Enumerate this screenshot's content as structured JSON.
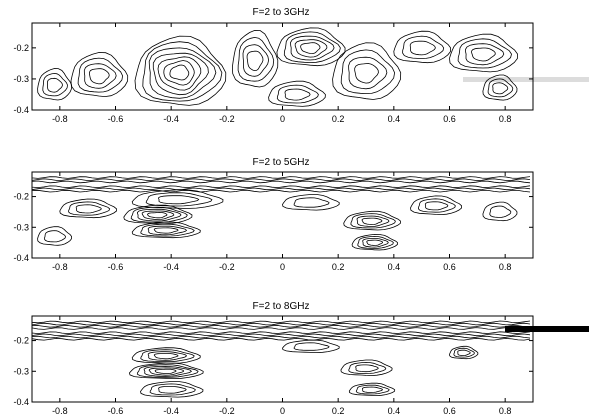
{
  "chart_data": [
    {
      "type": "contour",
      "title": "F=2 to 3GHz",
      "xlabel": "",
      "ylabel": "",
      "xlim": [
        -0.9,
        0.9
      ],
      "ylim": [
        -0.4,
        -0.12
      ],
      "xticks": [
        -0.8,
        -0.6,
        -0.4,
        -0.2,
        0,
        0.2,
        0.4,
        0.6,
        0.8
      ],
      "xtick_labels": [
        "-0.8",
        "-0.6",
        "-0.4",
        "-0.2",
        "0",
        "0.2",
        "0.4",
        "0.6",
        "0.8"
      ],
      "yticks": [
        -0.2,
        -0.3,
        -0.4
      ],
      "ytick_labels": [
        "-0.2",
        "-0.3",
        "-0.4"
      ],
      "grid": false,
      "line_color": "#000000",
      "features": [
        {
          "x": -0.66,
          "y": -0.29,
          "rx": 0.1,
          "ry": 0.07,
          "levels": 4
        },
        {
          "x": -0.82,
          "y": -0.32,
          "rx": 0.06,
          "ry": 0.05,
          "levels": 3
        },
        {
          "x": -0.37,
          "y": -0.28,
          "rx": 0.16,
          "ry": 0.11,
          "levels": 7
        },
        {
          "x": -0.1,
          "y": -0.24,
          "rx": 0.08,
          "ry": 0.09,
          "levels": 4
        },
        {
          "x": 0.1,
          "y": -0.2,
          "rx": 0.12,
          "ry": 0.06,
          "levels": 5
        },
        {
          "x": 0.3,
          "y": -0.28,
          "rx": 0.12,
          "ry": 0.09,
          "levels": 4
        },
        {
          "x": 0.5,
          "y": -0.2,
          "rx": 0.1,
          "ry": 0.05,
          "levels": 3
        },
        {
          "x": 0.72,
          "y": -0.22,
          "rx": 0.12,
          "ry": 0.06,
          "levels": 4
        },
        {
          "x": 0.78,
          "y": -0.33,
          "rx": 0.06,
          "ry": 0.04,
          "levels": 3
        },
        {
          "x": 0.05,
          "y": -0.35,
          "rx": 0.1,
          "ry": 0.04,
          "levels": 3
        }
      ]
    },
    {
      "type": "contour",
      "title": "F=2 to 5GHz",
      "xlabel": "",
      "ylabel": "",
      "xlim": [
        -0.9,
        0.9
      ],
      "ylim": [
        -0.4,
        -0.12
      ],
      "xticks": [
        -0.8,
        -0.6,
        -0.4,
        -0.2,
        0,
        0.2,
        0.4,
        0.6,
        0.8
      ],
      "xtick_labels": [
        "-0.8",
        "-0.6",
        "-0.4",
        "-0.2",
        "0",
        "0.2",
        "0.4",
        "0.6",
        "0.8"
      ],
      "yticks": [
        -0.2,
        -0.3,
        -0.4
      ],
      "ytick_labels": [
        "-0.2",
        "-0.3",
        "-0.4"
      ],
      "grid": false,
      "line_color": "#000000",
      "bands": [
        {
          "y": -0.145,
          "levels": 3
        },
        {
          "y": -0.175,
          "levels": 3
        }
      ],
      "features": [
        {
          "x": -0.45,
          "y": -0.26,
          "rx": 0.12,
          "ry": 0.03,
          "levels": 5
        },
        {
          "x": -0.42,
          "y": -0.31,
          "rx": 0.12,
          "ry": 0.025,
          "levels": 4
        },
        {
          "x": -0.38,
          "y": -0.21,
          "rx": 0.16,
          "ry": 0.03,
          "levels": 3
        },
        {
          "x": -0.7,
          "y": -0.24,
          "rx": 0.1,
          "ry": 0.03,
          "levels": 3
        },
        {
          "x": -0.82,
          "y": -0.33,
          "rx": 0.06,
          "ry": 0.03,
          "levels": 2
        },
        {
          "x": 0.32,
          "y": -0.28,
          "rx": 0.1,
          "ry": 0.03,
          "levels": 4
        },
        {
          "x": 0.33,
          "y": -0.35,
          "rx": 0.08,
          "ry": 0.025,
          "levels": 4
        },
        {
          "x": 0.55,
          "y": -0.23,
          "rx": 0.09,
          "ry": 0.03,
          "levels": 3
        },
        {
          "x": 0.1,
          "y": -0.22,
          "rx": 0.1,
          "ry": 0.025,
          "levels": 2
        },
        {
          "x": 0.78,
          "y": -0.25,
          "rx": 0.06,
          "ry": 0.03,
          "levels": 2
        }
      ]
    },
    {
      "type": "contour",
      "title": "F=2 to 8GHz",
      "xlabel": "",
      "ylabel": "",
      "xlim": [
        -0.9,
        0.9
      ],
      "ylim": [
        -0.4,
        -0.12
      ],
      "xticks": [
        -0.8,
        -0.6,
        -0.4,
        -0.2,
        0,
        0.2,
        0.4,
        0.6,
        0.8
      ],
      "xtick_labels": [
        "-0.8",
        "-0.6",
        "-0.4",
        "-0.2",
        "0",
        "0.2",
        "0.4",
        "0.6",
        "0.8"
      ],
      "yticks": [
        -0.2,
        -0.3,
        -0.4
      ],
      "ytick_labels": [
        "-0.2",
        "-0.3",
        "-0.4"
      ],
      "grid": false,
      "line_color": "#000000",
      "bands": [
        {
          "y": -0.15,
          "levels": 4
        },
        {
          "y": -0.185,
          "levels": 4
        }
      ],
      "features": [
        {
          "x": -0.42,
          "y": -0.25,
          "rx": 0.12,
          "ry": 0.025,
          "levels": 4
        },
        {
          "x": -0.42,
          "y": -0.3,
          "rx": 0.13,
          "ry": 0.025,
          "levels": 5
        },
        {
          "x": -0.4,
          "y": -0.36,
          "rx": 0.11,
          "ry": 0.025,
          "levels": 3
        },
        {
          "x": 0.3,
          "y": -0.29,
          "rx": 0.09,
          "ry": 0.025,
          "levels": 3
        },
        {
          "x": 0.32,
          "y": -0.36,
          "rx": 0.08,
          "ry": 0.02,
          "levels": 3
        },
        {
          "x": 0.65,
          "y": -0.24,
          "rx": 0.05,
          "ry": 0.02,
          "levels": 3
        },
        {
          "x": 0.1,
          "y": -0.22,
          "rx": 0.1,
          "ry": 0.02,
          "levels": 2
        }
      ]
    }
  ]
}
